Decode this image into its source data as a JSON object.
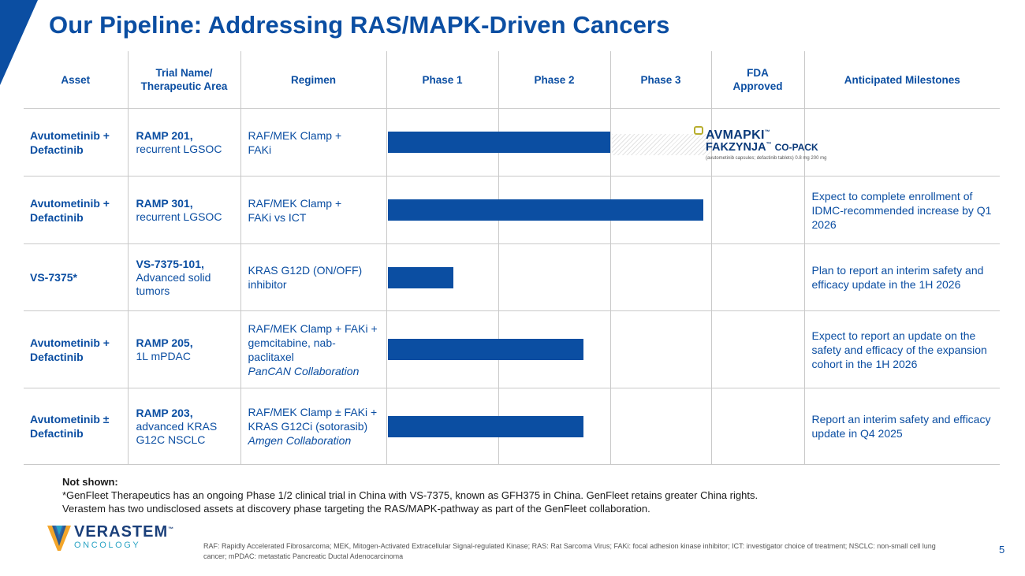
{
  "title": "Our Pipeline: Addressing RAS/MAPK-Driven Cancers",
  "colors": {
    "brand_blue": "#0b4ea2",
    "grid": "#c9c9c9",
    "hatch": "#e3e3e3"
  },
  "table": {
    "headers": [
      "Asset",
      "Trial Name/ Therapeutic Area",
      "Regimen",
      "Phase 1",
      "Phase 2",
      "Phase 3",
      "FDA Approved",
      "Anticipated Milestones"
    ],
    "rows": [
      {
        "asset": "Avutometinib + Defactinib",
        "trial_name": "RAMP 201,",
        "trial_area": "recurrent LGSOC",
        "regimen": "RAF/MEK Clamp + FAKi",
        "collaboration": "",
        "progress_phase": 2.0,
        "milestone": ""
      },
      {
        "asset": "Avutometinib + Defactinib",
        "trial_name": "RAMP 301,",
        "trial_area": "recurrent LGSOC",
        "regimen": "RAF/MEK Clamp + FAKi vs ICT",
        "collaboration": "",
        "progress_phase": 2.84,
        "milestone": "Expect to complete enrollment of IDMC-recommended increase by Q1 2026"
      },
      {
        "asset": "VS-7375*",
        "trial_name": "VS-7375-101,",
        "trial_area": "Advanced solid tumors",
        "regimen": "KRAS G12D (ON/OFF) inhibitor",
        "collaboration": "",
        "progress_phase": 0.59,
        "milestone": "Plan to report an interim safety and efficacy update in the 1H 2026"
      },
      {
        "asset": "Avutometinib + Defactinib",
        "trial_name": "RAMP 205,",
        "trial_area": "1L mPDAC",
        "regimen": "RAF/MEK Clamp + FAKi + gemcitabine, nab-paclitaxel",
        "collaboration": "PanCAN Collaboration",
        "progress_phase": 1.76,
        "milestone": "Expect to report an update on the safety and efficacy of the expansion cohort in the 1H 2026"
      },
      {
        "asset": "Avutometinib ± Defactinib",
        "trial_name": "RAMP 203,",
        "trial_area": "advanced KRAS G12C NSCLC",
        "regimen": "RAF/MEK Clamp ± FAKi + KRAS G12Ci (sotorasib)",
        "collaboration": "Amgen Collaboration",
        "progress_phase": 1.76,
        "milestone": "Report an interim safety and efficacy update in Q4 2025"
      }
    ]
  },
  "approved_product": {
    "name1": "AVMAPKI",
    "name2": "FAKZYNJA",
    "copack": "CO-PACK",
    "tm": "™",
    "fine_print": "(avutometinib capsules; defactinib tablets) 0.8 mg 200 mg"
  },
  "notes": {
    "heading": "Not shown:",
    "line1": "*GenFleet Therapeutics has an ongoing Phase 1/2 clinical trial in China with VS-7375, known as GFH375 in China. GenFleet retains greater China rights.",
    "line2": "Verastem has two undisclosed assets at discovery phase targeting the RAS/MAPK-pathway as part of the GenFleet collaboration."
  },
  "company": {
    "name": "VERASTEM",
    "tm": "™",
    "subtitle": "ONCOLOGY"
  },
  "abbreviations": "RAF: Rapidly Accelerated Fibrosarcoma; MEK, Mitogen-Activated Extracellular Signal-regulated Kinase; RAS: Rat Sarcoma Virus; FAKi: focal adhesion kinase inhibitor; ICT: investigator choice of treatment; NSCLC: non-small cell lung cancer; mPDAC: metastatic Pancreatic Ductal Adenocarcinoma",
  "page_number": "5"
}
